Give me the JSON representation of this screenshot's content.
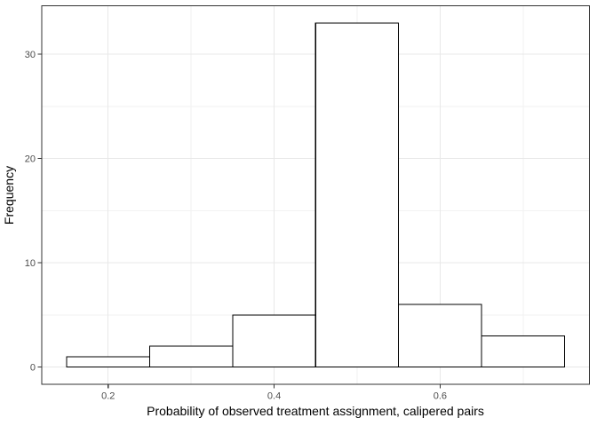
{
  "chart_data": {
    "type": "bar",
    "subtype": "histogram",
    "title": "",
    "xlabel": "Probability of observed treatment assignment, calipered pairs",
    "ylabel": "Frequency",
    "bin_edges": [
      0.15,
      0.25,
      0.35,
      0.45,
      0.55,
      0.65,
      0.75
    ],
    "bin_centers": [
      0.2,
      0.3,
      0.4,
      0.5,
      0.6,
      0.7
    ],
    "values": [
      1,
      2,
      5,
      33,
      6,
      3
    ],
    "x_ticks": {
      "values": [
        0.2,
        0.4,
        0.6
      ],
      "labels": [
        "0.2",
        "0.4",
        "0.6"
      ]
    },
    "y_ticks": {
      "values": [
        0,
        10,
        20,
        30
      ],
      "labels": [
        "0",
        "10",
        "20",
        "30"
      ]
    },
    "x_minor_gridlines": [
      0.3,
      0.5,
      0.7
    ],
    "y_minor_gridlines": [
      5,
      15,
      25
    ],
    "xlim": [
      0.12,
      0.78
    ],
    "ylim": [
      -1.65,
      34.65
    ],
    "grid": "major+minor",
    "legend": "none",
    "style": {
      "background": "#ffffff",
      "panel_background": "#ffffff",
      "panel_border_color": "#333333",
      "major_grid_color": "#e8e8e8",
      "minor_grid_color": "#f2f2f2",
      "bar_fill": "#ffffff",
      "bar_stroke": "#000000",
      "tick_mark_color": "#333333",
      "tick_label_color": "#4d4d4d",
      "axis_title_color": "#000000"
    }
  }
}
